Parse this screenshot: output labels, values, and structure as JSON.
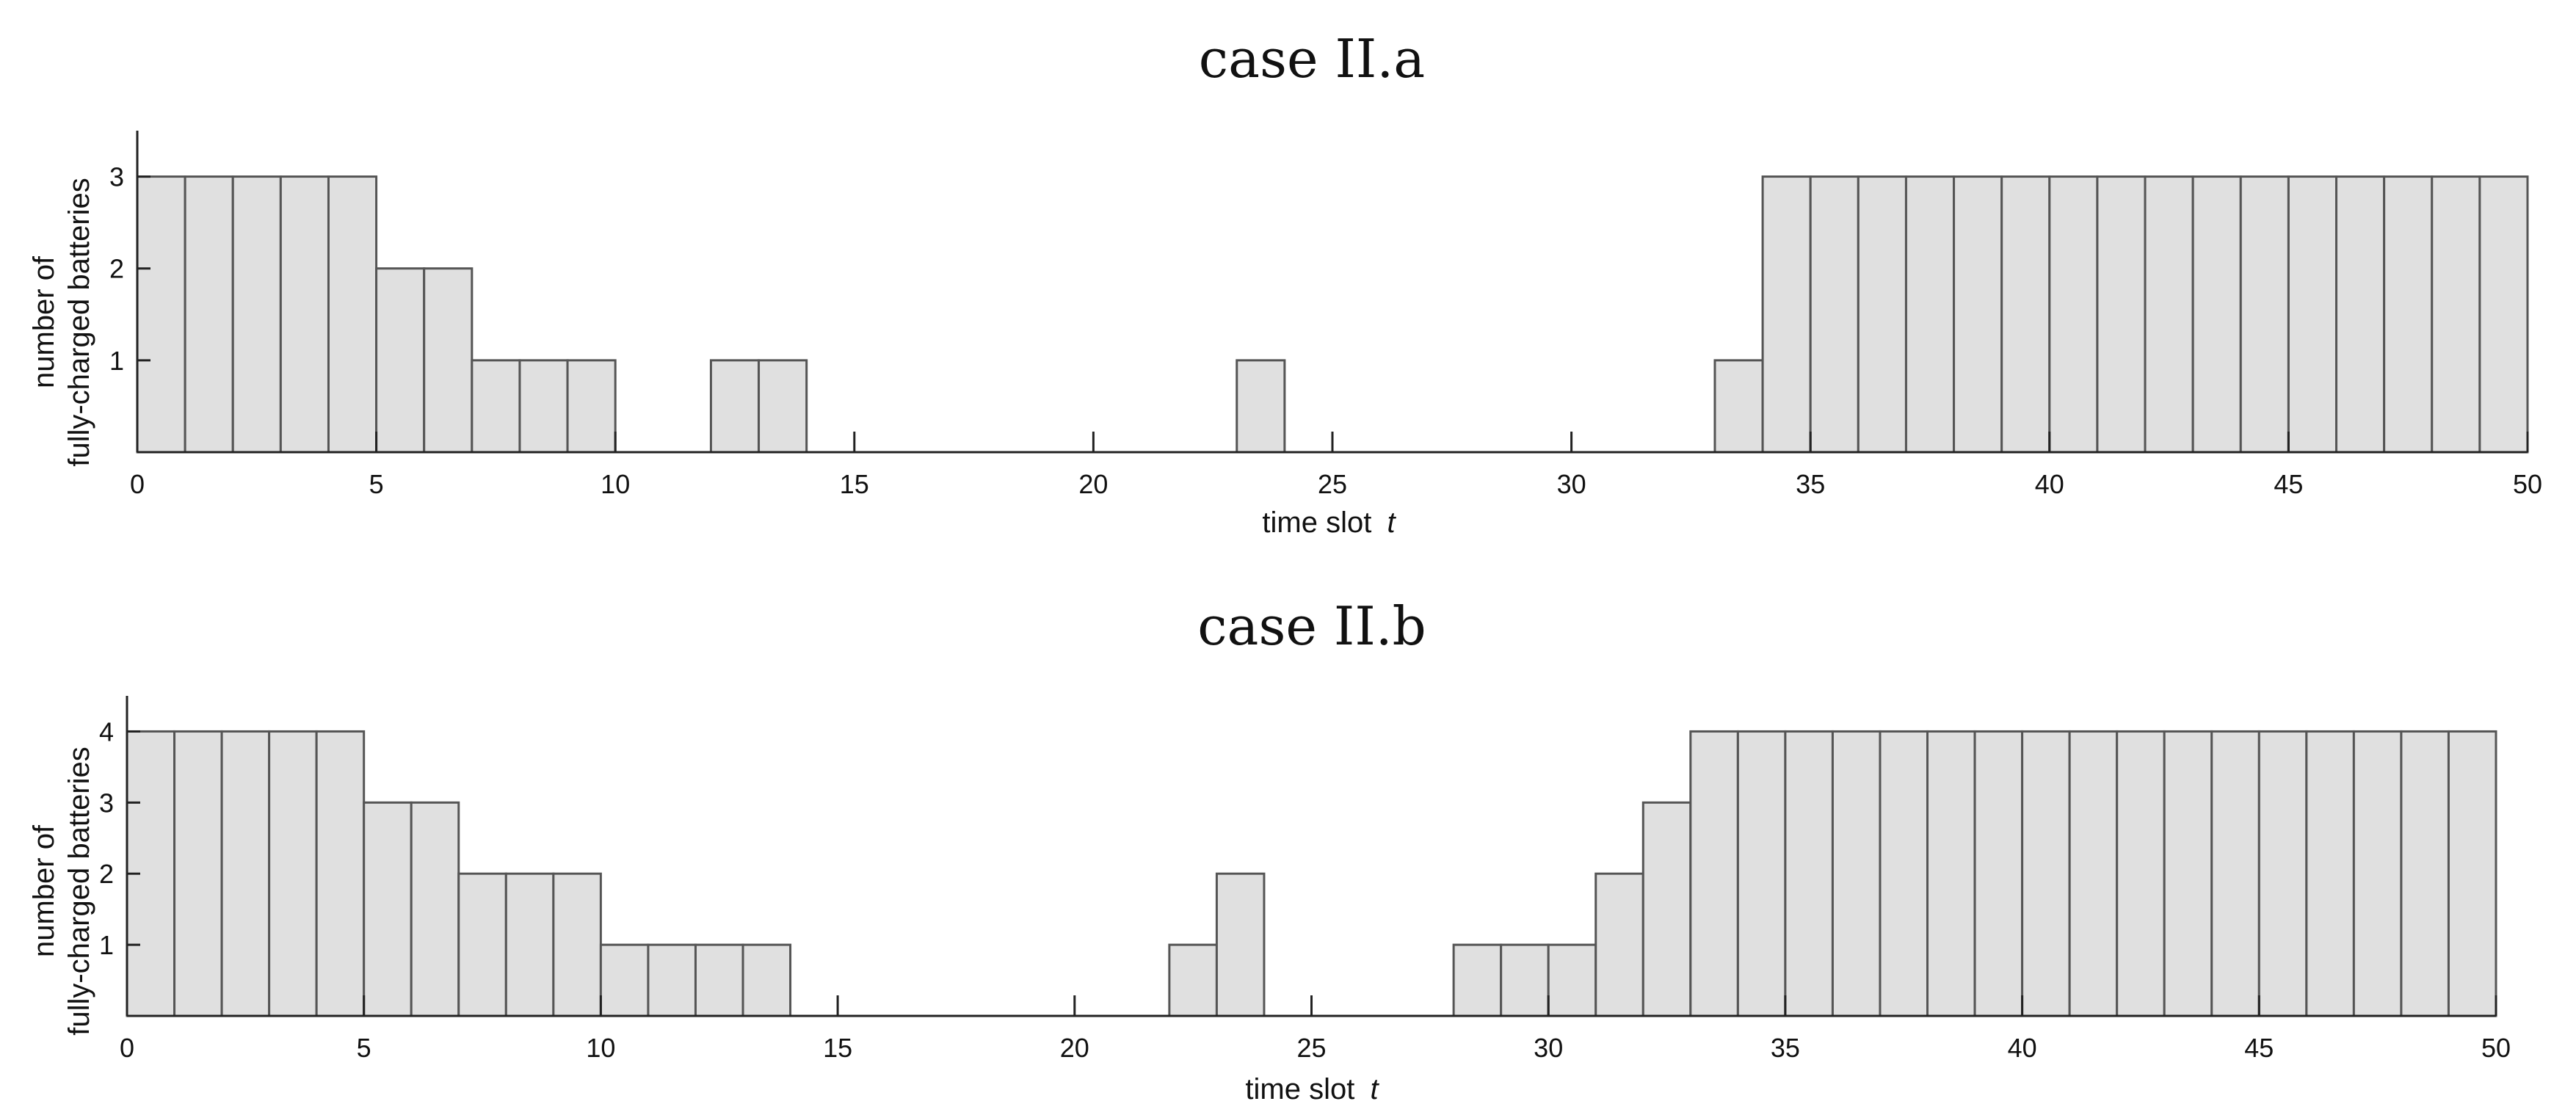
{
  "chart_data": [
    {
      "type": "bar",
      "title": "case II.a",
      "xlabel": "time slot",
      "xlabel_var": "t",
      "ylabel_line1": "number of",
      "ylabel_line2": "fully-charged batteries",
      "xlim": [
        0,
        50
      ],
      "ylim": [
        0,
        3.5
      ],
      "xticks": [
        0,
        5,
        10,
        15,
        20,
        25,
        30,
        35,
        40,
        45,
        50
      ],
      "yticks": [
        1,
        2,
        3
      ],
      "bar_width": 1,
      "x_start": 0,
      "values": [
        3,
        3,
        3,
        3,
        3,
        2,
        2,
        1,
        1,
        1,
        0,
        0,
        1,
        1,
        0,
        0,
        0,
        0,
        0,
        0,
        0,
        0,
        0,
        1,
        0,
        0,
        0,
        0,
        0,
        0,
        0,
        0,
        0,
        1,
        3,
        3,
        3,
        3,
        3,
        3,
        3,
        3,
        3,
        3,
        3,
        3,
        3,
        3,
        3,
        3
      ]
    },
    {
      "type": "bar",
      "title": "case II.b",
      "xlabel": "time slot",
      "xlabel_var": "t",
      "ylabel_line1": "number of",
      "ylabel_line2": "fully-charged batteries",
      "xlim": [
        0,
        50
      ],
      "ylim": [
        0,
        4.5
      ],
      "xticks": [
        0,
        5,
        10,
        15,
        20,
        25,
        30,
        35,
        40,
        45,
        50
      ],
      "yticks": [
        1,
        2,
        3,
        4
      ],
      "bar_width": 1,
      "x_start": 0,
      "values": [
        4,
        4,
        4,
        4,
        4,
        3,
        3,
        2,
        2,
        2,
        1,
        1,
        1,
        1,
        0,
        0,
        0,
        0,
        0,
        0,
        0,
        0,
        1,
        2,
        0,
        0,
        0,
        0,
        1,
        1,
        1,
        2,
        3,
        4,
        4,
        4,
        4,
        4,
        4,
        4,
        4,
        4,
        4,
        4,
        4,
        4,
        4,
        4,
        4,
        4
      ]
    }
  ]
}
